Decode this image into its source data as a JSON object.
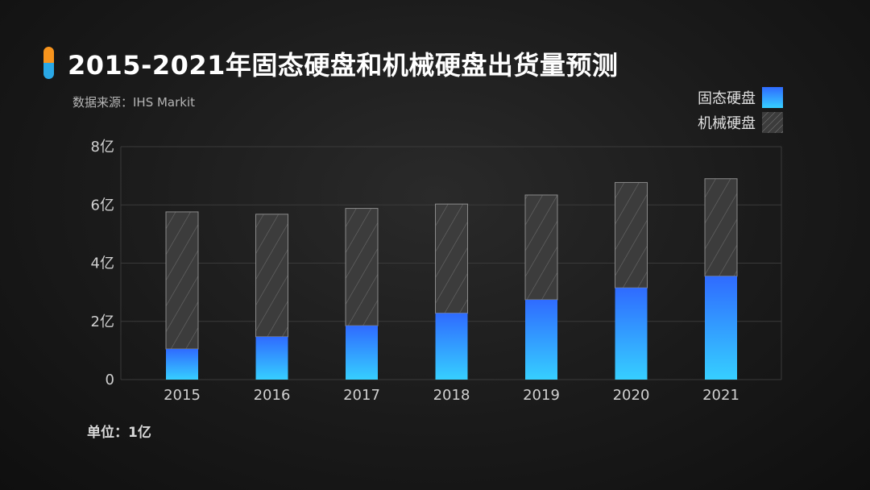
{
  "page": {
    "title": "2015-2021年固态硬盘和机械硬盘出货量预测",
    "source": "数据来源：IHS Markit",
    "unit": "单位：1亿"
  },
  "colors": {
    "ssd_top": "#2f6bff",
    "ssd_bottom": "#36cfff",
    "hdd_fill": "#3c3c3c",
    "hdd_hatch": "#6a6a6a",
    "title_mark_top": "#f7941d",
    "title_mark_bottom": "#2aa8e6"
  },
  "chart_data": {
    "type": "bar",
    "stacked": true,
    "categories": [
      "2015",
      "2016",
      "2017",
      "2018",
      "2019",
      "2020",
      "2021"
    ],
    "series": [
      {
        "name": "固态硬盘",
        "values": [
          1.05,
          1.47,
          1.85,
          2.28,
          2.74,
          3.15,
          3.55
        ]
      },
      {
        "name": "机械硬盘",
        "values": [
          4.71,
          4.21,
          4.03,
          3.75,
          3.6,
          3.62,
          3.35
        ]
      }
    ],
    "yticks": [
      {
        "value": 0,
        "label": "0"
      },
      {
        "value": 2,
        "label": "2亿"
      },
      {
        "value": 4,
        "label": "4亿"
      },
      {
        "value": 6,
        "label": "6亿"
      },
      {
        "value": 8,
        "label": "8亿"
      }
    ],
    "ylim": [
      0,
      8
    ],
    "grid": true,
    "legend_position": "top-right"
  }
}
